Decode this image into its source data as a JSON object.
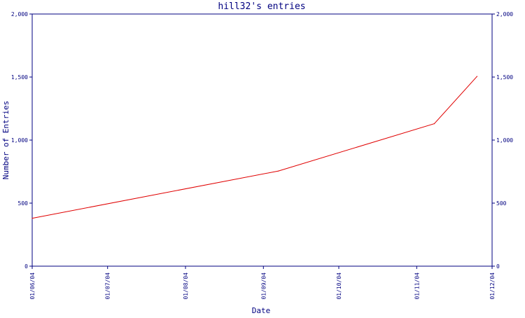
{
  "chart_data": {
    "type": "line",
    "title": "hill32's entries",
    "xlabel": "Date",
    "ylabel": "Number of Entries",
    "x_tick_labels": [
      "01/06/04",
      "01/07/04",
      "01/08/04",
      "01/09/04",
      "01/10/04",
      "01/11/04",
      "01/12/04"
    ],
    "y_tick_labels": [
      "0",
      "500",
      "1,000",
      "1,500",
      "2,000"
    ],
    "y_ticks": [
      0,
      500,
      1000,
      1500,
      2000
    ],
    "ylim": [
      0,
      2000
    ],
    "xlim": [
      "2004-06-01",
      "2004-12-01"
    ],
    "grid": false,
    "right_axis": true,
    "series": [
      {
        "color": "#e00000",
        "points": [
          {
            "x": "2004-06-01",
            "y": 380
          },
          {
            "x": "2004-09-07",
            "y": 755
          },
          {
            "x": "2004-11-08",
            "y": 1130
          },
          {
            "x": "2004-11-25",
            "y": 1505
          }
        ]
      }
    ]
  },
  "colors": {
    "axis": "#000080",
    "text": "#000080",
    "series": "#e00000"
  }
}
